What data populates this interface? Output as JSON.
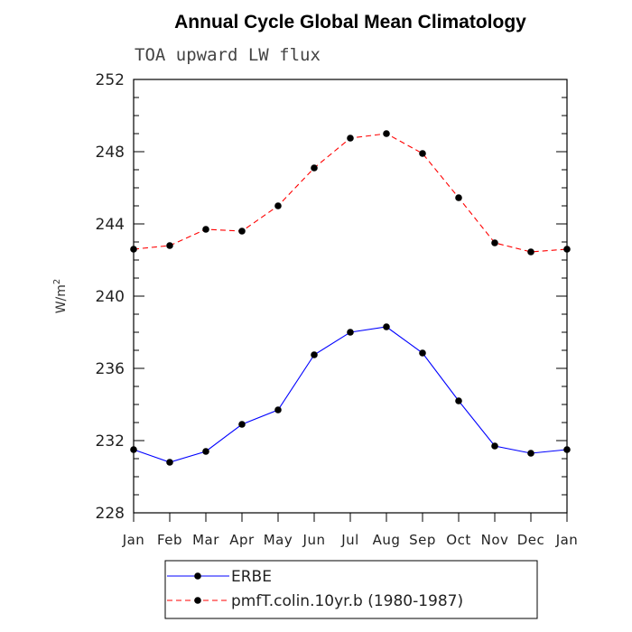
{
  "chart_data": {
    "type": "line",
    "title": "Annual Cycle Global Mean Climatology",
    "subtitle": "TOA upward LW flux",
    "ylabel": "W/m",
    "ylabel_superscript": "2",
    "xlabel": "",
    "categories": [
      "Jan",
      "Feb",
      "Mar",
      "Apr",
      "May",
      "Jun",
      "Jul",
      "Aug",
      "Sep",
      "Oct",
      "Nov",
      "Dec",
      "Jan"
    ],
    "ylim": [
      228,
      252
    ],
    "yticks": [
      228,
      232,
      236,
      240,
      244,
      248,
      252
    ],
    "ytick_labels": [
      "228",
      "232",
      "236",
      "240",
      "244",
      "248",
      "252"
    ],
    "grid": false,
    "legend_position": "bottom",
    "series": [
      {
        "name": "ERBE",
        "color": "#0000ff",
        "linestyle": "solid",
        "marker": "circle",
        "values": [
          231.5,
          230.8,
          231.4,
          232.9,
          233.7,
          236.75,
          238.0,
          238.3,
          236.85,
          234.2,
          231.7,
          231.3,
          231.5
        ]
      },
      {
        "name": "pmfT.colin.10yr.b (1980-1987)",
        "color": "#ff0000",
        "linestyle": "dashed",
        "marker": "circle",
        "values": [
          242.6,
          242.8,
          243.7,
          243.6,
          245.0,
          247.1,
          248.75,
          249.0,
          247.9,
          245.45,
          242.95,
          242.45,
          242.6
        ]
      }
    ]
  }
}
